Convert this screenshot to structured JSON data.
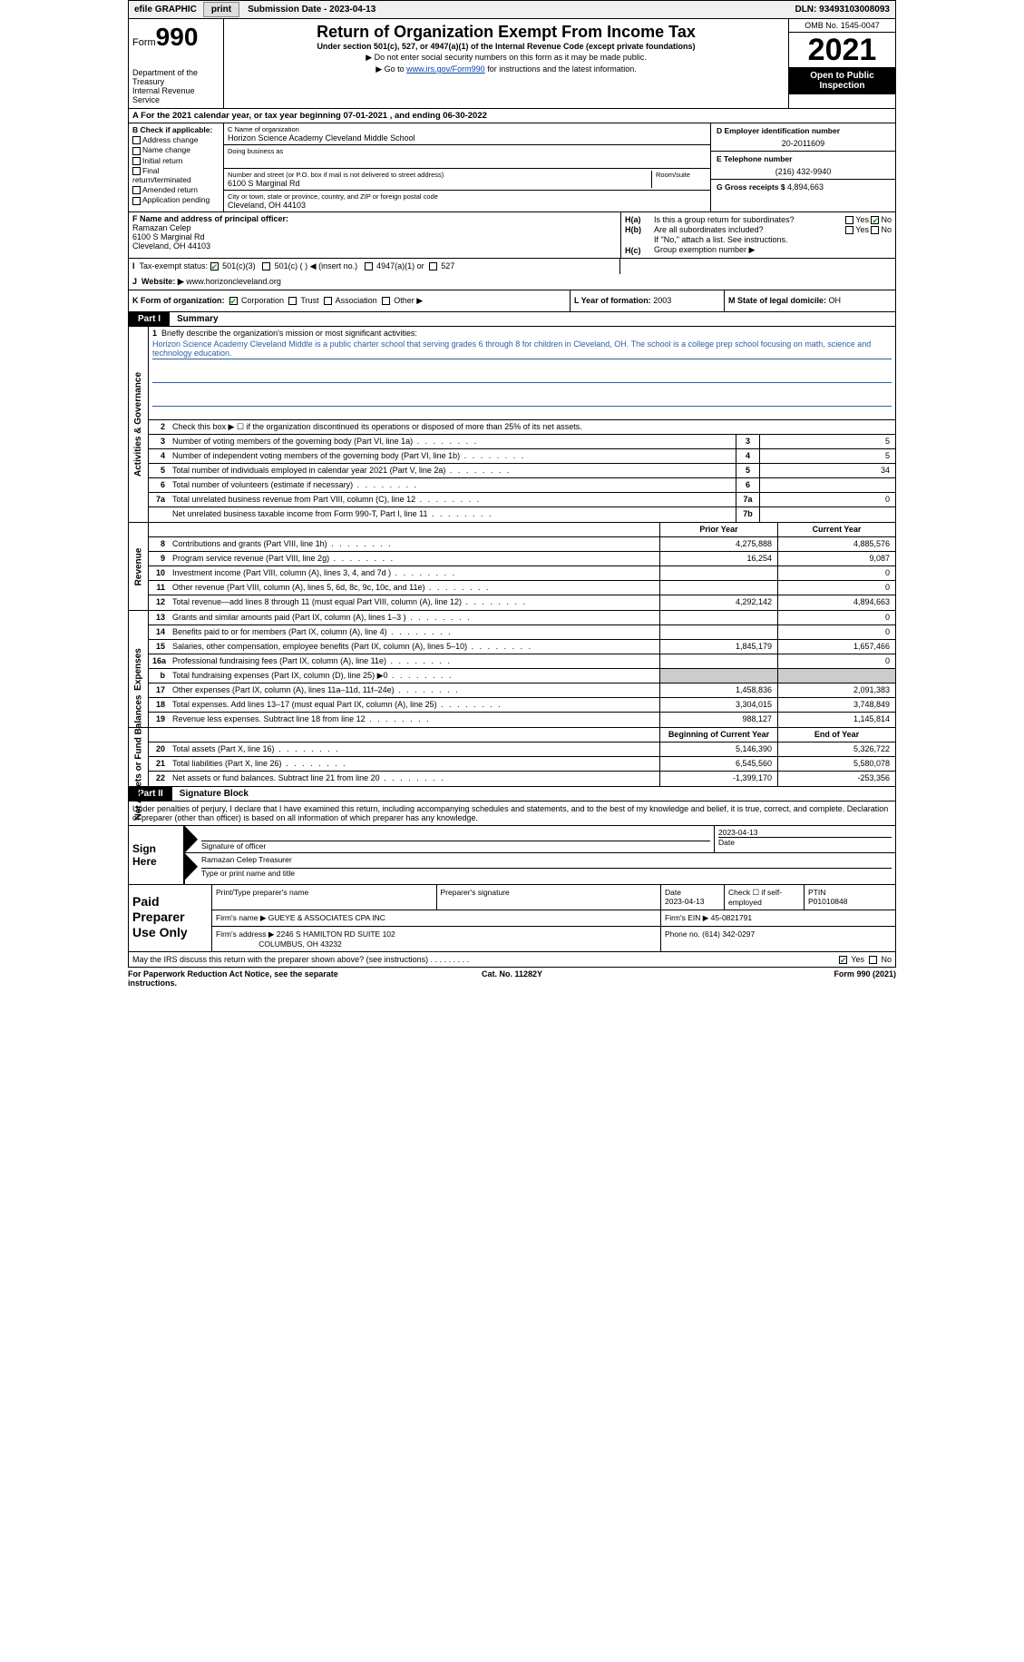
{
  "topbar": {
    "efile_label": "efile GRAPHIC",
    "print_btn": "print",
    "submission_label": "Submission Date - 2023-04-13",
    "dln": "DLN: 93493103008093"
  },
  "header": {
    "form_word": "Form",
    "form_num": "990",
    "dept": "Department of the Treasury",
    "irs": "Internal Revenue Service",
    "title": "Return of Organization Exempt From Income Tax",
    "sub": "Under section 501(c), 527, or 4947(a)(1) of the Internal Revenue Code (except private foundations)",
    "note1": "▶ Do not enter social security numbers on this form as it may be made public.",
    "note2_pre": "▶ Go to ",
    "note2_link": "www.irs.gov/Form990",
    "note2_post": " for instructions and the latest information.",
    "omb": "OMB No. 1545-0047",
    "year": "2021",
    "open": "Open to Public Inspection"
  },
  "period": "A For the 2021 calendar year, or tax year beginning 07-01-2021    , and ending 06-30-2022",
  "box_b": {
    "title": "B Check if applicable:",
    "opts": [
      "Address change",
      "Name change",
      "Initial return",
      "Final return/terminated",
      "Amended return",
      "Application pending"
    ]
  },
  "box_c": {
    "lbl_name": "C Name of organization",
    "name": "Horizon Science Academy Cleveland Middle School",
    "lbl_dba": "Doing business as",
    "lbl_street_pre": "Number and street (or P.O. box if mail is not delivered to street address)",
    "street": "6100 S Marginal Rd",
    "lbl_room": "Room/suite",
    "lbl_city": "City or town, state or province, country, and ZIP or foreign postal code",
    "city": "Cleveland, OH  44103"
  },
  "box_d": {
    "lbl": "D Employer identification number",
    "val": "20-2011609"
  },
  "box_e": {
    "lbl": "E Telephone number",
    "val": "(216) 432-9940"
  },
  "box_g": {
    "lbl": "G Gross receipts $ ",
    "val": "4,894,663"
  },
  "box_f": {
    "lbl": "F  Name and address of principal officer:",
    "name": "Ramazan Celep",
    "addr1": "6100 S Marginal Rd",
    "addr2": "Cleveland, OH  44103"
  },
  "box_h": {
    "ha": "Is this a group return for subordinates?",
    "hb": "Are all subordinates included?",
    "note": "If \"No,\" attach a list. See instructions.",
    "hc": "Group exemption number ▶",
    "yes": "Yes",
    "no": "No"
  },
  "row_i": {
    "lbl": "Tax-exempt status:",
    "o501c3": "501(c)(3)",
    "o501c": "501(c) (  ) ◀ (insert no.)",
    "o4947": "4947(a)(1) or",
    "o527": "527"
  },
  "row_j": {
    "lbl": "Website: ▶",
    "val": " www.horizoncleveland.org"
  },
  "row_k": {
    "lbl": "K Form of organization:",
    "corp": "Corporation",
    "trust": "Trust",
    "assoc": "Association",
    "other": "Other ▶"
  },
  "row_l": {
    "lbl": "L Year of formation: ",
    "val": "2003"
  },
  "row_m": {
    "lbl": "M State of legal domicile: ",
    "val": "OH"
  },
  "part1": {
    "tag": "Part I",
    "title": "Summary"
  },
  "mission": {
    "lbl": "Briefly describe the organization's mission or most significant activities:",
    "text": "Horizon Science Academy Cleveland Middle is a public charter school that serving grades 6 through 8 for children in Cleveland, OH. The school is a college prep school focusing on math, science and technology education."
  },
  "line2": "Check this box ▶ ☐  if the organization discontinued its operations or disposed of more than 25% of its net assets.",
  "summary_lines": [
    {
      "n": "3",
      "d": "Number of voting members of the governing body (Part VI, line 1a)",
      "box": "3",
      "v": "5"
    },
    {
      "n": "4",
      "d": "Number of independent voting members of the governing body (Part VI, line 1b)",
      "box": "4",
      "v": "5"
    },
    {
      "n": "5",
      "d": "Total number of individuals employed in calendar year 2021 (Part V, line 2a)",
      "box": "5",
      "v": "34"
    },
    {
      "n": "6",
      "d": "Total number of volunteers (estimate if necessary)",
      "box": "6",
      "v": ""
    },
    {
      "n": "7a",
      "d": "Total unrelated business revenue from Part VIII, column (C), line 12",
      "box": "7a",
      "v": "0"
    },
    {
      "n": "",
      "d": "Net unrelated business taxable income from Form 990-T, Part I, line 11",
      "box": "7b",
      "v": ""
    }
  ],
  "rev_hdr": {
    "prior": "Prior Year",
    "curr": "Current Year"
  },
  "revenue_lines": [
    {
      "n": "8",
      "d": "Contributions and grants (Part VIII, line 1h)",
      "p": "4,275,888",
      "c": "4,885,576"
    },
    {
      "n": "9",
      "d": "Program service revenue (Part VIII, line 2g)",
      "p": "16,254",
      "c": "9,087"
    },
    {
      "n": "10",
      "d": "Investment income (Part VIII, column (A), lines 3, 4, and 7d )",
      "p": "",
      "c": "0"
    },
    {
      "n": "11",
      "d": "Other revenue (Part VIII, column (A), lines 5, 6d, 8c, 9c, 10c, and 11e)",
      "p": "",
      "c": "0"
    },
    {
      "n": "12",
      "d": "Total revenue—add lines 8 through 11 (must equal Part VIII, column (A), line 12)",
      "p": "4,292,142",
      "c": "4,894,663"
    }
  ],
  "expense_lines": [
    {
      "n": "13",
      "d": "Grants and similar amounts paid (Part IX, column (A), lines 1–3 )",
      "p": "",
      "c": "0"
    },
    {
      "n": "14",
      "d": "Benefits paid to or for members (Part IX, column (A), line 4)",
      "p": "",
      "c": "0"
    },
    {
      "n": "15",
      "d": "Salaries, other compensation, employee benefits (Part IX, column (A), lines 5–10)",
      "p": "1,845,179",
      "c": "1,657,466"
    },
    {
      "n": "16a",
      "d": "Professional fundraising fees (Part IX, column (A), line 11e)",
      "p": "",
      "c": "0"
    },
    {
      "n": "b",
      "d": "Total fundraising expenses (Part IX, column (D), line 25) ▶0",
      "p": "SHADE",
      "c": "SHADE"
    },
    {
      "n": "17",
      "d": "Other expenses (Part IX, column (A), lines 11a–11d, 11f–24e)",
      "p": "1,458,836",
      "c": "2,091,383"
    },
    {
      "n": "18",
      "d": "Total expenses. Add lines 13–17 (must equal Part IX, column (A), line 25)",
      "p": "3,304,015",
      "c": "3,748,849"
    },
    {
      "n": "19",
      "d": "Revenue less expenses. Subtract line 18 from line 12",
      "p": "988,127",
      "c": "1,145,814"
    }
  ],
  "net_hdr": {
    "prior": "Beginning of Current Year",
    "curr": "End of Year"
  },
  "net_lines": [
    {
      "n": "20",
      "d": "Total assets (Part X, line 16)",
      "p": "5,146,390",
      "c": "5,326,722"
    },
    {
      "n": "21",
      "d": "Total liabilities (Part X, line 26)",
      "p": "6,545,560",
      "c": "5,580,078"
    },
    {
      "n": "22",
      "d": "Net assets or fund balances. Subtract line 21 from line 20",
      "p": "-1,399,170",
      "c": "-253,356"
    }
  ],
  "part2": {
    "tag": "Part II",
    "title": "Signature Block"
  },
  "sig_text": "Under penalties of perjury, I declare that I have examined this return, including accompanying schedules and statements, and to the best of my knowledge and belief, it is true, correct, and complete. Declaration of preparer (other than officer) is based on all information of which preparer has any knowledge.",
  "sign": {
    "label": "Sign Here",
    "sig_officer": "Signature of officer",
    "date": "Date",
    "date_val": "2023-04-13",
    "name": "Ramazan Celep  Treasurer",
    "name_lbl": "Type or print name and title"
  },
  "prep": {
    "label": "Paid Preparer Use Only",
    "print_lbl": "Print/Type preparer's name",
    "sig_lbl": "Preparer's signature",
    "date_lbl": "Date",
    "date_val": "2023-04-13",
    "check_lbl": "Check ☐ if self-employed",
    "ptin_lbl": "PTIN",
    "ptin_val": "P01010848",
    "firm_name_lbl": "Firm's name    ▶",
    "firm_name": "GUEYE & ASSOCIATES CPA INC",
    "firm_ein_lbl": "Firm's EIN ▶",
    "firm_ein": "45-0821791",
    "firm_addr_lbl": "Firm's address ▶",
    "firm_addr1": "2246 S HAMILTON RD SUITE 102",
    "firm_addr2": "COLUMBUS, OH  43232",
    "phone_lbl": "Phone no. ",
    "phone": "(614) 342-0297"
  },
  "discuss": {
    "txt": "May the IRS discuss this return with the preparer shown above? (see instructions)",
    "yes": "Yes",
    "no": "No"
  },
  "footer": {
    "l": "For Paperwork Reduction Act Notice, see the separate instructions.",
    "c": "Cat. No. 11282Y",
    "r": "Form 990 (2021)"
  },
  "side_labels": {
    "gov": "Activities & Governance",
    "rev": "Revenue",
    "exp": "Expenses",
    "net": "Net Assets or Fund Balances"
  }
}
